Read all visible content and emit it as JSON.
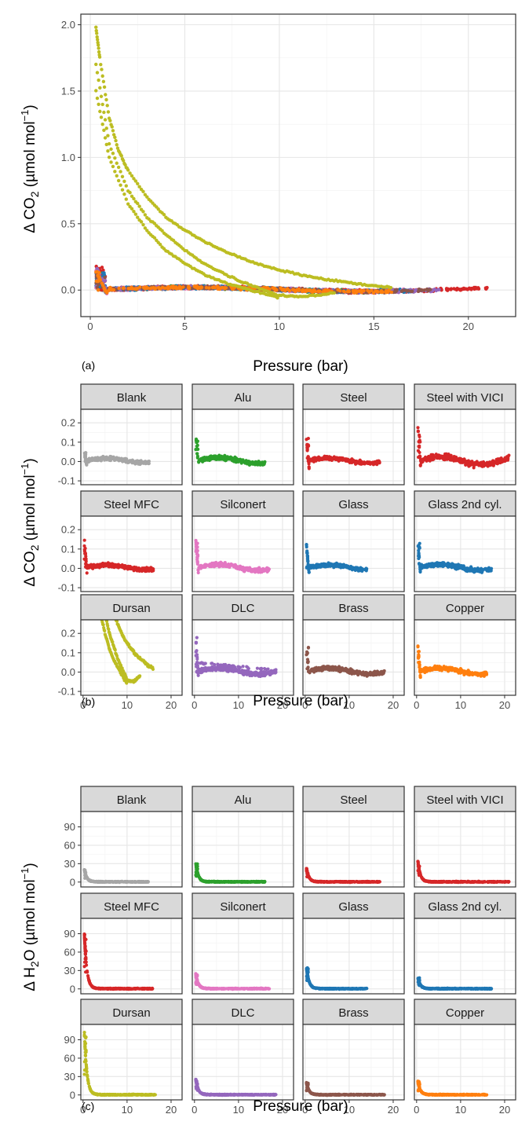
{
  "figure": {
    "tags": {
      "a": "(a)",
      "b": "(b)",
      "c": "(c)"
    },
    "x_title": "Pressure (bar)",
    "y_title_a_pre": "Δ CO",
    "y_title_a_sub": "2",
    "y_title_mid": " (µmol mol",
    "y_title_sup": "−1",
    "y_title_post": ")",
    "y_title_c_pre": "Δ H",
    "y_title_c_sub": "2",
    "y_title_c_post2": "O"
  },
  "chart_data": [
    {
      "id": "a",
      "type": "scatter",
      "title": "",
      "xlabel": "Pressure (bar)",
      "ylabel": "Δ CO2 (µmol mol−1)",
      "xlim": [
        -0.5,
        22.5
      ],
      "ylim": [
        -0.2,
        2.08
      ],
      "xticks": [
        0,
        5,
        10,
        15,
        20
      ],
      "yticks": [
        0.0,
        0.5,
        1.0,
        1.5,
        2.0
      ],
      "ytick_labels": [
        "0.0",
        "0.5",
        "1.0",
        "1.5",
        "2.0"
      ],
      "grid": true,
      "legend": "none",
      "series": [
        {
          "color": "#a6a6a6",
          "xmax": 15.0,
          "peak": 0.05
        },
        {
          "color": "#2ca02c",
          "xmax": 16.0,
          "peak": 0.14
        },
        {
          "color": "#d62728",
          "xmax": 17.0,
          "peak": 0.12
        },
        {
          "color": "#d62728",
          "xmax": 21.0,
          "peak": 0.18
        },
        {
          "color": "#d62728",
          "xmax": 16.0,
          "peak": 0.16
        },
        {
          "color": "#e377c2",
          "xmax": 17.0,
          "peak": 0.15
        },
        {
          "color": "#1f77b4",
          "xmax": 14.0,
          "peak": 0.12
        },
        {
          "color": "#1f77b4",
          "xmax": 17.0,
          "peak": 0.13
        },
        {
          "color": "#9467bd",
          "xmax": 18.5,
          "peak": 0.18
        },
        {
          "color": "#8c564b",
          "xmax": 18.0,
          "peak": 0.13
        },
        {
          "color": "#ff7f0e",
          "xmax": 16.0,
          "peak": 0.14
        }
      ],
      "dursan": {
        "color": "#bcbd22",
        "curves": [
          {
            "x": [
              0.3,
              0.5,
              1,
              1.5,
              2,
              3,
              4,
              5,
              6,
              7,
              8,
              9,
              10,
              11,
              12,
              13,
              14,
              15,
              16
            ],
            "y": [
              1.98,
              1.75,
              1.3,
              1.05,
              0.9,
              0.7,
              0.55,
              0.45,
              0.37,
              0.3,
              0.24,
              0.19,
              0.15,
              0.12,
              0.09,
              0.07,
              0.05,
              0.03,
              0.02
            ]
          },
          {
            "x": [
              0.3,
              1,
              2,
              3,
              4,
              5,
              6,
              7,
              8,
              9,
              10,
              11,
              12,
              13
            ],
            "y": [
              1.7,
              1.1,
              0.75,
              0.55,
              0.42,
              0.3,
              0.2,
              0.13,
              0.06,
              0.01,
              -0.04,
              -0.05,
              -0.04,
              -0.02
            ]
          },
          {
            "x": [
              0.3,
              1,
              2,
              3,
              4,
              5,
              6,
              7,
              8,
              9,
              10
            ],
            "y": [
              1.5,
              1.0,
              0.65,
              0.45,
              0.3,
              0.2,
              0.12,
              0.06,
              0.02,
              -0.02,
              -0.06
            ]
          }
        ]
      }
    },
    {
      "id": "b",
      "type": "scatter",
      "title": "",
      "xlabel": "Pressure (bar)",
      "ylabel": "Δ CO2 (µmol mol−1)",
      "xlim": [
        -0.5,
        22.5
      ],
      "ylim": [
        -0.12,
        0.27
      ],
      "xticks": [
        0,
        10,
        20
      ],
      "yticks": [
        -0.1,
        0.0,
        0.1,
        0.2
      ],
      "ytick_labels": [
        "-0.1",
        "0.0",
        "0.1",
        "0.2"
      ],
      "grid": true,
      "legend": "none",
      "facets": [
        {
          "name": "Blank",
          "color": "#a6a6a6",
          "xmax": 15.0,
          "peak": 0.05,
          "amp": 0.02
        },
        {
          "name": "Alu",
          "color": "#2ca02c",
          "xmax": 16.0,
          "peak": 0.14,
          "amp": 0.025
        },
        {
          "name": "Steel",
          "color": "#d62728",
          "xmax": 17.0,
          "peak": 0.12,
          "amp": 0.02
        },
        {
          "name": "Steel with VICI",
          "color": "#d62728",
          "xmax": 21.0,
          "peak": 0.18,
          "amp": 0.035
        },
        {
          "name": "Steel MFC",
          "color": "#d62728",
          "xmax": 16.0,
          "peak": 0.16,
          "amp": 0.02
        },
        {
          "name": "Silconert",
          "color": "#e377c2",
          "xmax": 17.0,
          "peak": 0.15,
          "amp": 0.025
        },
        {
          "name": "Glass",
          "color": "#1f77b4",
          "xmax": 14.0,
          "peak": 0.12,
          "amp": 0.02
        },
        {
          "name": "Glass 2nd cyl.",
          "color": "#1f77b4",
          "xmax": 17.0,
          "peak": 0.13,
          "amp": 0.025
        },
        {
          "name": "Dursan",
          "color": "#bcbd22",
          "xmax": 16.5,
          "peak": 0.25,
          "amp": 0.0,
          "special": "dursan"
        },
        {
          "name": "DLC",
          "color": "#9467bd",
          "xmax": 18.5,
          "peak": 0.18,
          "amp": 0.025,
          "special": "dlc"
        },
        {
          "name": "Brass",
          "color": "#8c564b",
          "xmax": 18.0,
          "peak": 0.13,
          "amp": 0.025
        },
        {
          "name": "Copper",
          "color": "#ff7f0e",
          "xmax": 16.0,
          "peak": 0.14,
          "amp": 0.025
        }
      ]
    },
    {
      "id": "c",
      "type": "scatter",
      "title": "",
      "xlabel": "Pressure (bar)",
      "ylabel": "Δ H2O (µmol mol−1)",
      "xlim": [
        -0.5,
        22.5
      ],
      "ylim": [
        -8,
        115
      ],
      "xticks": [
        0,
        10,
        20
      ],
      "yticks": [
        0,
        30,
        60,
        90
      ],
      "ytick_labels": [
        "0",
        "30",
        "60",
        "90"
      ],
      "grid": true,
      "legend": "none",
      "facets": [
        {
          "name": "Blank",
          "color": "#a6a6a6",
          "xmax": 15.0,
          "peak": 20
        },
        {
          "name": "Alu",
          "color": "#2ca02c",
          "xmax": 16.0,
          "peak": 30
        },
        {
          "name": "Steel",
          "color": "#d62728",
          "xmax": 17.0,
          "peak": 22
        },
        {
          "name": "Steel with VICI",
          "color": "#d62728",
          "xmax": 21.0,
          "peak": 33
        },
        {
          "name": "Steel MFC",
          "color": "#d62728",
          "xmax": 16.0,
          "peak": 90
        },
        {
          "name": "Silconert",
          "color": "#e377c2",
          "xmax": 17.0,
          "peak": 24
        },
        {
          "name": "Glass",
          "color": "#1f77b4",
          "xmax": 14.0,
          "peak": 35
        },
        {
          "name": "Glass 2nd cyl.",
          "color": "#1f77b4",
          "xmax": 17.0,
          "peak": 18
        },
        {
          "name": "Dursan",
          "color": "#bcbd22",
          "xmax": 16.5,
          "peak": 105
        },
        {
          "name": "DLC",
          "color": "#9467bd",
          "xmax": 18.5,
          "peak": 25
        },
        {
          "name": "Brass",
          "color": "#8c564b",
          "xmax": 18.0,
          "peak": 20
        },
        {
          "name": "Copper",
          "color": "#ff7f0e",
          "xmax": 16.0,
          "peak": 22
        }
      ]
    }
  ]
}
